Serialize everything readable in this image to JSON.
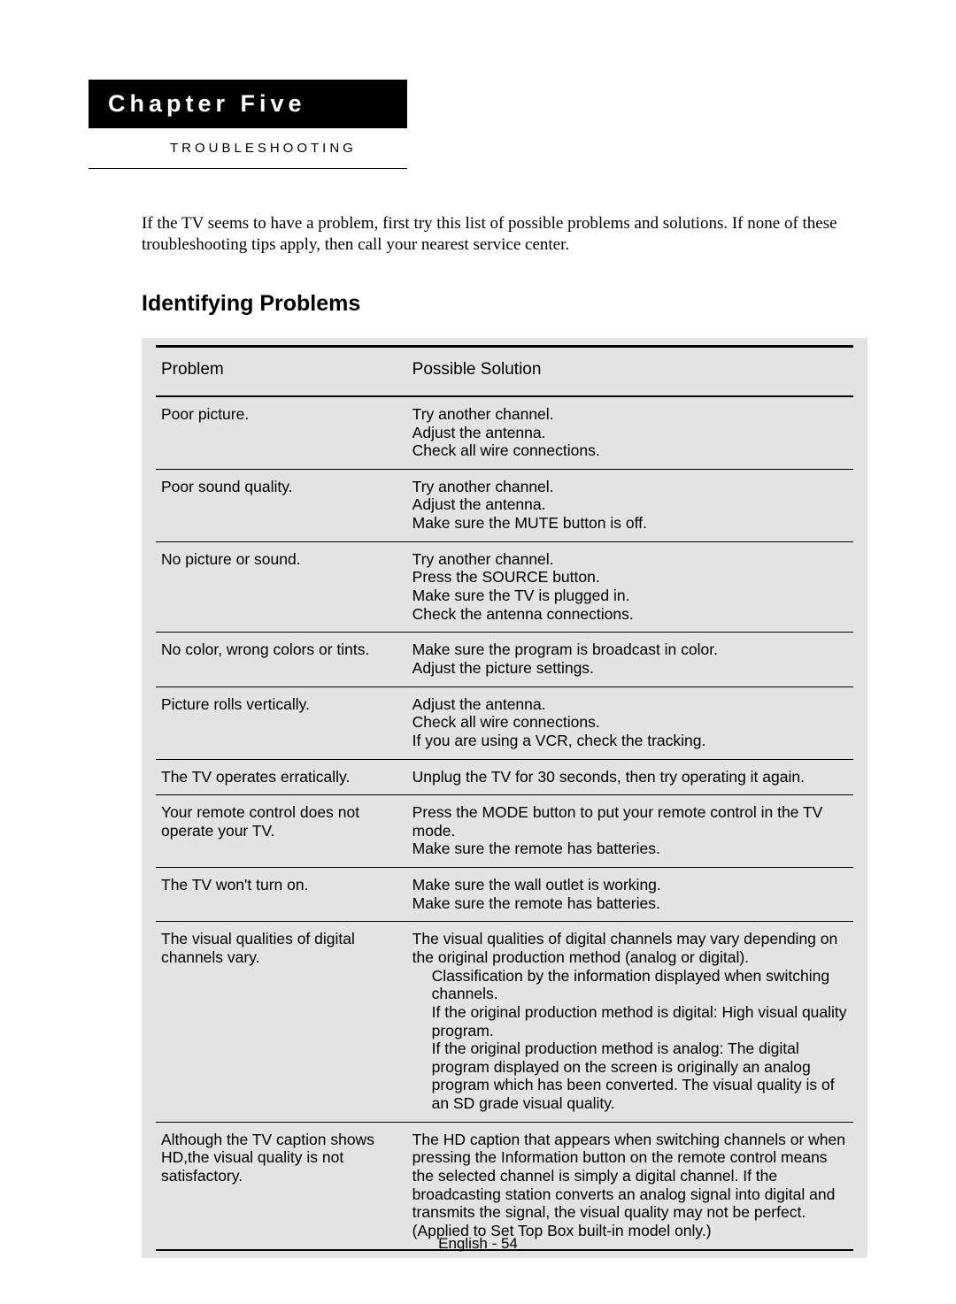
{
  "chapter": {
    "title": "Chapter Five",
    "subtitle": "TROUBLESHOOTING"
  },
  "intro_text": "If the TV seems to have a problem, first try this list of possible problems and solutions. If none of these troubleshooting tips apply, then call your nearest service center.",
  "section_heading": "Identifying Problems",
  "table": {
    "columns": {
      "problem": "Problem",
      "solution": "Possible Solution"
    },
    "rows": [
      {
        "problem": "Poor picture.",
        "solutions": [
          "Try another channel.",
          "Adjust the antenna.",
          "Check all wire connections."
        ]
      },
      {
        "problem": "Poor sound quality.",
        "solutions": [
          "Try another channel.",
          "Adjust the antenna.",
          "Make sure the MUTE button is off."
        ]
      },
      {
        "problem": "No picture or sound.",
        "solutions": [
          "Try another channel.",
          "Press the SOURCE button.",
          "Make sure the TV is plugged in.",
          "Check the antenna connections."
        ]
      },
      {
        "problem": "No color, wrong colors or tints.",
        "solutions": [
          "Make sure the program is broadcast in color.",
          "Adjust the picture settings."
        ]
      },
      {
        "problem": "Picture rolls vertically.",
        "solutions": [
          "Adjust the antenna.",
          "Check all wire connections.",
          "If you are using a VCR, check the tracking."
        ]
      },
      {
        "problem": "The TV operates erratically.",
        "solutions": [
          "Unplug the TV for 30 seconds, then try operating it again."
        ]
      },
      {
        "problem": "Your remote control does not operate your TV.",
        "solutions": [
          "Press the MODE button to put your remote control in the TV mode.",
          "Make sure the remote has batteries."
        ]
      },
      {
        "problem": "The TV won't turn on.",
        "solutions": [
          "Make sure the wall outlet is working.",
          "Make sure the remote has batteries."
        ]
      },
      {
        "problem": "The visual qualities of digital channels vary.",
        "solutions": [
          "The visual qualities of digital channels may vary depending on the original production method (analog or digital).",
          {
            "indent": true,
            "text": "Classification by the information displayed when switching channels."
          },
          {
            "indent": true,
            "text": "If the original production method is digital: High visual quality program."
          },
          {
            "indent": true,
            "text": "If the original production method is analog: The digital program displayed on the screen is originally an analog program which has been converted. The visual quality is of an SD grade visual quality."
          }
        ]
      },
      {
        "problem": "Although the TV caption shows HD,the visual quality is not satisfactory.",
        "solutions": [
          "The HD caption that appears when switching channels or when pressing the Information button on the remote control means the selected channel is simply a digital channel. If the broadcasting station converts an analog signal into digital and transmits the signal, the visual quality may not be perfect. (Applied to Set Top Box built-in model only.)"
        ]
      }
    ]
  },
  "footer": "English - 54",
  "styles": {
    "chapter_title_bg": "#000000",
    "chapter_title_color": "#ffffff",
    "table_bg": "#e3e3e3",
    "body_font_size": 17.5,
    "heading_font_size": 25
  }
}
